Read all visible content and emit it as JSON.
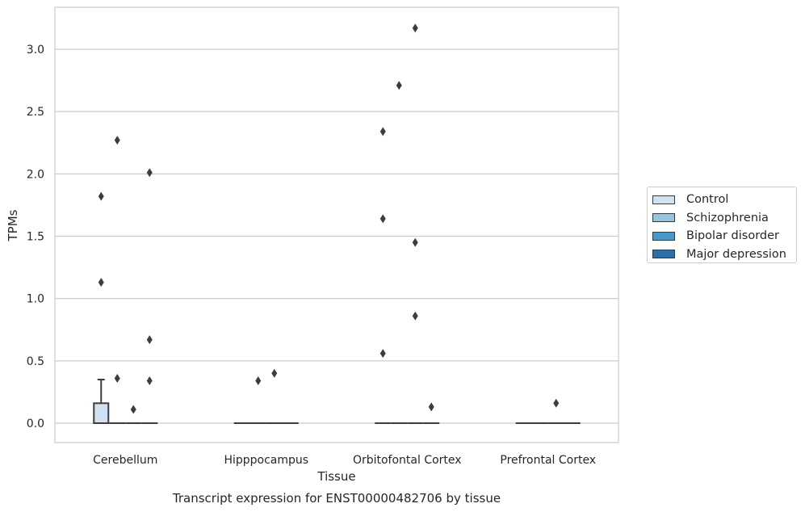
{
  "chart_data": {
    "type": "box",
    "title": "Transcript expression for ENST00000482706 by tissue",
    "xlabel": "Tissue",
    "ylabel": "TPMs",
    "categories": [
      "Cerebellum",
      "Hipppocampus",
      "Orbitofontal Cortex",
      "Prefrontal Cortex"
    ],
    "ylim": [
      -0.15,
      3.35
    ],
    "yticks": [
      "0.0",
      "0.5",
      "1.0",
      "1.5",
      "2.0",
      "2.5",
      "3.0"
    ],
    "grid": true,
    "legend_position": "right",
    "series": [
      {
        "name": "Control",
        "color": "#d0e1f2",
        "boxes": [
          {
            "q1": 0.0,
            "median": 0.0,
            "q3": 0.16,
            "whisker_low": 0.0,
            "whisker_high": 0.35,
            "outliers": [
              1.13,
              1.82
            ]
          },
          {
            "q1": 0.0,
            "median": 0.0,
            "q3": 0.0,
            "whisker_low": 0.0,
            "whisker_high": 0.0,
            "outliers": []
          },
          {
            "q1": 0.0,
            "median": 0.0,
            "q3": 0.0,
            "whisker_low": 0.0,
            "whisker_high": 0.0,
            "outliers": [
              0.56,
              1.64,
              2.34
            ]
          },
          {
            "q1": 0.0,
            "median": 0.0,
            "q3": 0.0,
            "whisker_low": 0.0,
            "whisker_high": 0.0,
            "outliers": []
          }
        ]
      },
      {
        "name": "Schizophrenia",
        "color": "#94c4df",
        "boxes": [
          {
            "q1": 0.0,
            "median": 0.0,
            "q3": 0.0,
            "whisker_low": 0.0,
            "whisker_high": 0.0,
            "outliers": [
              0.36,
              2.27
            ]
          },
          {
            "q1": 0.0,
            "median": 0.0,
            "q3": 0.0,
            "whisker_low": 0.0,
            "whisker_high": 0.0,
            "outliers": [
              0.34
            ]
          },
          {
            "q1": 0.0,
            "median": 0.0,
            "q3": 0.0,
            "whisker_low": 0.0,
            "whisker_high": 0.0,
            "outliers": [
              2.71
            ]
          },
          {
            "q1": 0.0,
            "median": 0.0,
            "q3": 0.0,
            "whisker_low": 0.0,
            "whisker_high": 0.0,
            "outliers": []
          }
        ]
      },
      {
        "name": "Bipolar disorder",
        "color": "#4a98c9",
        "boxes": [
          {
            "q1": 0.0,
            "median": 0.0,
            "q3": 0.0,
            "whisker_low": 0.0,
            "whisker_high": 0.0,
            "outliers": [
              0.11
            ]
          },
          {
            "q1": 0.0,
            "median": 0.0,
            "q3": 0.0,
            "whisker_low": 0.0,
            "whisker_high": 0.0,
            "outliers": [
              0.4
            ]
          },
          {
            "q1": 0.0,
            "median": 0.0,
            "q3": 0.0,
            "whisker_low": 0.0,
            "whisker_high": 0.0,
            "outliers": [
              0.86,
              1.45,
              3.17
            ]
          },
          {
            "q1": 0.0,
            "median": 0.0,
            "q3": 0.0,
            "whisker_low": 0.0,
            "whisker_high": 0.0,
            "outliers": [
              0.16
            ]
          }
        ]
      },
      {
        "name": "Major depression",
        "color": "#2e6fa9",
        "boxes": [
          {
            "q1": 0.0,
            "median": 0.0,
            "q3": 0.0,
            "whisker_low": 0.0,
            "whisker_high": 0.0,
            "outliers": [
              0.34,
              0.67,
              2.01
            ]
          },
          {
            "q1": 0.0,
            "median": 0.0,
            "q3": 0.0,
            "whisker_low": 0.0,
            "whisker_high": 0.0,
            "outliers": []
          },
          {
            "q1": 0.0,
            "median": 0.0,
            "q3": 0.0,
            "whisker_low": 0.0,
            "whisker_high": 0.0,
            "outliers": [
              0.13
            ]
          },
          {
            "q1": 0.0,
            "median": 0.0,
            "q3": 0.0,
            "whisker_low": 0.0,
            "whisker_high": 0.0,
            "outliers": []
          }
        ]
      }
    ]
  }
}
